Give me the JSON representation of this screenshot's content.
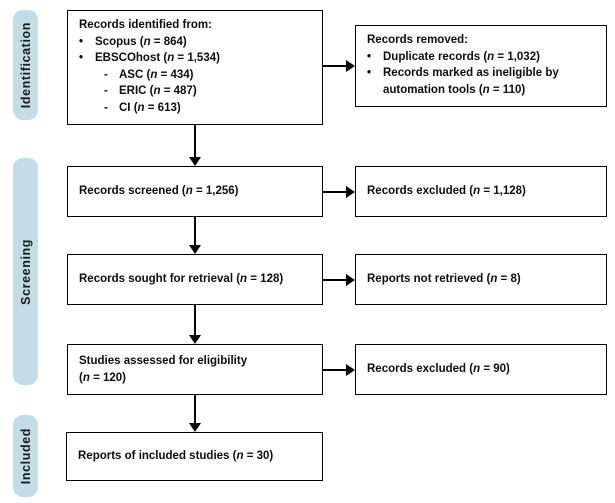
{
  "palette": {
    "stage_bg": "#c3dde6",
    "box_border": "#000000",
    "text": "#0d0d0d",
    "background": "#ffffff"
  },
  "stages": [
    {
      "id": "identification",
      "label": "Identification"
    },
    {
      "id": "screening",
      "label": "Screening"
    },
    {
      "id": "included",
      "label": "Included"
    }
  ],
  "boxes": {
    "identified": {
      "lines": [
        {
          "indent": 0,
          "marker": "",
          "text": "Records identified from:"
        },
        {
          "indent": 1,
          "marker": "•",
          "text": "Scopus (*n* = 864)"
        },
        {
          "indent": 1,
          "marker": "•",
          "text": "EBSCOhost (*n* = 1,534)"
        },
        {
          "indent": 2,
          "marker": "-",
          "text": "ASC (*n* = 434)"
        },
        {
          "indent": 2,
          "marker": "-",
          "text": "ERIC (*n* = 487)"
        },
        {
          "indent": 2,
          "marker": "-",
          "text": "CI (*n* = 613)"
        }
      ]
    },
    "removed": {
      "lines": [
        {
          "indent": 0,
          "marker": "",
          "text": "Records removed:"
        },
        {
          "indent": 1,
          "marker": "•",
          "text": "Duplicate records (*n* = 1,032)"
        },
        {
          "indent": 1,
          "marker": "•",
          "text": "Records marked as ineligible by"
        },
        {
          "indent": 1,
          "marker": "",
          "text": "automation tools (*n* = 110)"
        }
      ]
    },
    "screened": {
      "lines": [
        {
          "indent": 0,
          "marker": "",
          "text": "Records screened (*n* = 1,256)"
        }
      ]
    },
    "excluded_screening": {
      "lines": [
        {
          "indent": 0,
          "marker": "",
          "text": "Records excluded (*n* = 1,128)"
        }
      ]
    },
    "sought": {
      "lines": [
        {
          "indent": 0,
          "marker": "",
          "text": "Records sought for retrieval (*n* = 128)"
        }
      ]
    },
    "not_retrieved": {
      "lines": [
        {
          "indent": 0,
          "marker": "",
          "text": "Reports not retrieved (*n* = 8)"
        }
      ]
    },
    "assessed": {
      "lines": [
        {
          "indent": 0,
          "marker": "",
          "text": "Studies assessed for eligibility"
        },
        {
          "indent": 0,
          "marker": "",
          "text": "(*n* = 120)"
        }
      ]
    },
    "excluded_eligibility": {
      "lines": [
        {
          "indent": 0,
          "marker": "",
          "text": "Records excluded (*n* = 90)"
        }
      ]
    },
    "included_reports": {
      "lines": [
        {
          "indent": 0,
          "marker": "",
          "text": "Reports of included studies (*n* = 30)"
        }
      ]
    }
  }
}
